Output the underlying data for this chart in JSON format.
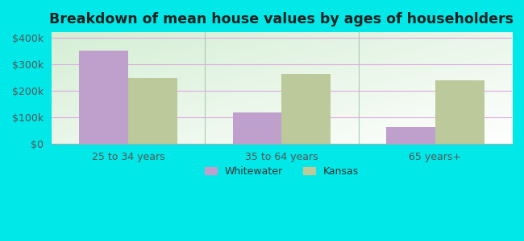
{
  "title": "Breakdown of mean house values by ages of householders",
  "categories": [
    "25 to 34 years",
    "35 to 64 years",
    "65 years+"
  ],
  "whitewater_values": [
    350000,
    118000,
    65000
  ],
  "kansas_values": [
    248000,
    265000,
    240000
  ],
  "whitewater_color": "#bf9fcc",
  "kansas_color": "#bcc99a",
  "background_outer": "#00e8e8",
  "background_inner": "#e8f5e8",
  "ylabel_ticks": [
    0,
    100000,
    200000,
    300000,
    400000
  ],
  "ylabel_labels": [
    "$0",
    "$100k",
    "$200k",
    "$300k",
    "$400k"
  ],
  "ylim": [
    0,
    420000
  ],
  "bar_width": 0.32,
  "legend_labels": [
    "Whitewater",
    "Kansas"
  ],
  "title_fontsize": 12.5,
  "tick_fontsize": 9,
  "legend_fontsize": 9,
  "separator_color": "#aaddaa",
  "grid_color": "#cc99cc",
  "figsize": [
    6.5,
    3.0
  ]
}
